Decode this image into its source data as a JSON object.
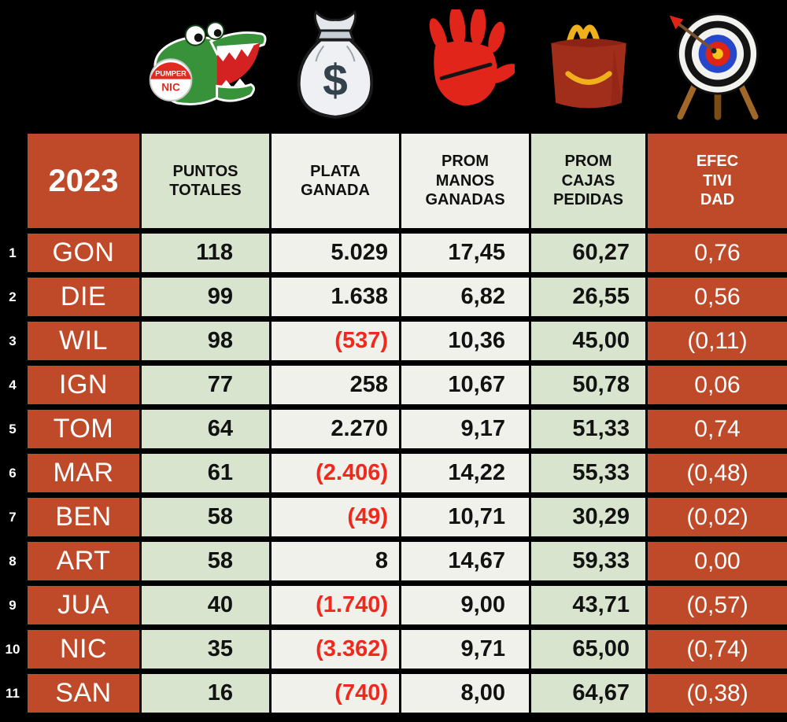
{
  "title_year": "2023",
  "columns": [
    {
      "label": "PUNTOS\nTOTALES",
      "icon": "pumpernic-logo"
    },
    {
      "label": "PLATA\nGANADA",
      "icon": "money-bag"
    },
    {
      "label": "PROM\nMANOS\nGANADAS",
      "icon": "red-hand"
    },
    {
      "label": "PROM\nCAJAS\nPEDIDAS",
      "icon": "happy-meal-box"
    },
    {
      "label": "EFEC\nTIVI\nDAD",
      "icon": "target"
    }
  ],
  "icons": {
    "logo_badge_top": "PUMPER",
    "logo_badge_bottom": "NIC",
    "money_symbol": "$"
  },
  "colors": {
    "accent_red": "#bf4a2a",
    "light_green": "#d8e4ce",
    "off_white": "#f1f1ec",
    "negative_red": "#f3281c",
    "background": "#000000"
  },
  "rows": [
    {
      "rank": "1",
      "name": "GON",
      "puntos": "118",
      "plata": "5.029",
      "plata_negative": false,
      "manos": "17,45",
      "cajas": "60,27",
      "efectividad": "0,76",
      "efectividad_negative": false
    },
    {
      "rank": "2",
      "name": "DIE",
      "puntos": "99",
      "plata": "1.638",
      "plata_negative": false,
      "manos": "6,82",
      "cajas": "26,55",
      "efectividad": "0,56",
      "efectividad_negative": false
    },
    {
      "rank": "3",
      "name": "WIL",
      "puntos": "98",
      "plata": "(537)",
      "plata_negative": true,
      "manos": "10,36",
      "cajas": "45,00",
      "efectividad": "(0,11)",
      "efectividad_negative": true
    },
    {
      "rank": "4",
      "name": "IGN",
      "puntos": "77",
      "plata": "258",
      "plata_negative": false,
      "manos": "10,67",
      "cajas": "50,78",
      "efectividad": "0,06",
      "efectividad_negative": false
    },
    {
      "rank": "5",
      "name": "TOM",
      "puntos": "64",
      "plata": "2.270",
      "plata_negative": false,
      "manos": "9,17",
      "cajas": "51,33",
      "efectividad": "0,74",
      "efectividad_negative": false
    },
    {
      "rank": "6",
      "name": "MAR",
      "puntos": "61",
      "plata": "(2.406)",
      "plata_negative": true,
      "manos": "14,22",
      "cajas": "55,33",
      "efectividad": "(0,48)",
      "efectividad_negative": true
    },
    {
      "rank": "7",
      "name": "BEN",
      "puntos": "58",
      "plata": "(49)",
      "plata_negative": true,
      "manos": "10,71",
      "cajas": "30,29",
      "efectividad": "(0,02)",
      "efectividad_negative": true
    },
    {
      "rank": "8",
      "name": "ART",
      "puntos": "58",
      "plata": "8",
      "plata_negative": false,
      "manos": "14,67",
      "cajas": "59,33",
      "efectividad": "0,00",
      "efectividad_negative": false
    },
    {
      "rank": "9",
      "name": "JUA",
      "puntos": "40",
      "plata": "(1.740)",
      "plata_negative": true,
      "manos": "9,00",
      "cajas": "43,71",
      "efectividad": "(0,57)",
      "efectividad_negative": true
    },
    {
      "rank": "10",
      "name": "NIC",
      "puntos": "35",
      "plata": "(3.362)",
      "plata_negative": true,
      "manos": "9,71",
      "cajas": "65,00",
      "efectividad": "(0,74)",
      "efectividad_negative": true
    },
    {
      "rank": "11",
      "name": "SAN",
      "puntos": "16",
      "plata": "(740)",
      "plata_negative": true,
      "manos": "8,00",
      "cajas": "64,67",
      "efectividad": "(0,38)",
      "efectividad_negative": true
    }
  ],
  "chart_data": {
    "type": "table",
    "title": "2023",
    "columns": [
      "2023",
      "PUNTOS TOTALES",
      "PLATA GANADA",
      "PROM MANOS GANADAS",
      "PROM CAJAS PEDIDAS",
      "EFECTIVIDAD"
    ],
    "rows": [
      [
        "GON",
        118,
        5029,
        17.45,
        60.27,
        0.76
      ],
      [
        "DIE",
        99,
        1638,
        6.82,
        26.55,
        0.56
      ],
      [
        "WIL",
        98,
        -537,
        10.36,
        45.0,
        -0.11
      ],
      [
        "IGN",
        77,
        258,
        10.67,
        50.78,
        0.06
      ],
      [
        "TOM",
        64,
        2270,
        9.17,
        51.33,
        0.74
      ],
      [
        "MAR",
        61,
        -2406,
        14.22,
        55.33,
        -0.48
      ],
      [
        "BEN",
        58,
        -49,
        10.71,
        30.29,
        -0.02
      ],
      [
        "ART",
        58,
        8,
        14.67,
        59.33,
        0.0
      ],
      [
        "JUA",
        40,
        -1740,
        9.0,
        43.71,
        -0.57
      ],
      [
        "NIC",
        35,
        -3362,
        9.71,
        65.0,
        -0.74
      ],
      [
        "SAN",
        16,
        -740,
        8.0,
        64.67,
        -0.38
      ]
    ]
  }
}
